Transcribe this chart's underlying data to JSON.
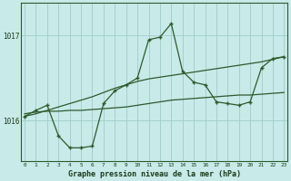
{
  "title": "Graphe pression niveau de la mer (hPa)",
  "background_color": "#c8eae8",
  "grid_color": "#a0cccc",
  "line_color": "#2d5a2d",
  "text_color": "#1a3a1a",
  "x_ticks": [
    0,
    1,
    2,
    3,
    4,
    5,
    6,
    7,
    8,
    9,
    10,
    11,
    12,
    13,
    14,
    15,
    16,
    17,
    18,
    19,
    20,
    21,
    22,
    23
  ],
  "y_ticks": [
    1016,
    1017
  ],
  "ylim": [
    1015.52,
    1017.38
  ],
  "xlim": [
    -0.3,
    23.3
  ],
  "main_y": [
    1016.05,
    1016.12,
    1016.18,
    1015.82,
    1015.68,
    1015.68,
    1015.7,
    1016.2,
    1016.35,
    1016.42,
    1016.5,
    1016.95,
    1016.98,
    1017.14,
    1016.58,
    1016.45,
    1016.42,
    1016.22,
    1016.2,
    1016.18,
    1016.22,
    1016.62,
    1016.73,
    1016.75
  ],
  "flat_trend_y": [
    1016.08,
    1016.1,
    1016.11,
    1016.11,
    1016.12,
    1016.12,
    1016.13,
    1016.14,
    1016.15,
    1016.16,
    1016.18,
    1016.2,
    1016.22,
    1016.24,
    1016.25,
    1016.26,
    1016.27,
    1016.28,
    1016.29,
    1016.3,
    1016.3,
    1016.31,
    1016.32,
    1016.33
  ],
  "diag_trend_y": [
    1016.05,
    1016.08,
    1016.12,
    1016.16,
    1016.2,
    1016.24,
    1016.28,
    1016.33,
    1016.38,
    1016.42,
    1016.46,
    1016.49,
    1016.51,
    1016.53,
    1016.55,
    1016.57,
    1016.59,
    1016.61,
    1016.63,
    1016.65,
    1016.67,
    1016.69,
    1016.72,
    1016.75
  ]
}
